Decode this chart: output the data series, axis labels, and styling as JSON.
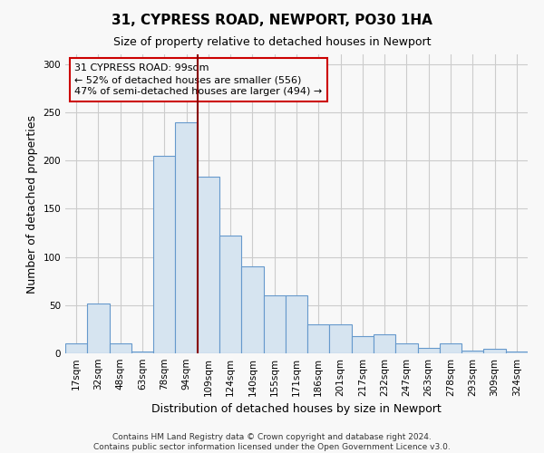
{
  "title": "31, CYPRESS ROAD, NEWPORT, PO30 1HA",
  "subtitle": "Size of property relative to detached houses in Newport",
  "xlabel": "Distribution of detached houses by size in Newport",
  "ylabel": "Number of detached properties",
  "categories": [
    "17sqm",
    "32sqm",
    "48sqm",
    "63sqm",
    "78sqm",
    "94sqm",
    "109sqm",
    "124sqm",
    "140sqm",
    "155sqm",
    "171sqm",
    "186sqm",
    "201sqm",
    "217sqm",
    "232sqm",
    "247sqm",
    "263sqm",
    "278sqm",
    "293sqm",
    "309sqm",
    "324sqm"
  ],
  "values": [
    10,
    52,
    10,
    2,
    205,
    240,
    183,
    122,
    90,
    60,
    60,
    30,
    30,
    18,
    20,
    10,
    6,
    10,
    3,
    5,
    2
  ],
  "bar_color": "#d6e4f0",
  "bar_edgecolor": "#6699cc",
  "grid_color": "#cccccc",
  "annotation_line_color": "#880000",
  "annotation_box_edgecolor": "#cc0000",
  "annotation_text": "31 CYPRESS ROAD: 99sqm\n← 52% of detached houses are smaller (556)\n47% of semi-detached houses are larger (494) →",
  "property_line_x": 5.5,
  "ylim": [
    0,
    310
  ],
  "yticks": [
    0,
    50,
    100,
    150,
    200,
    250,
    300
  ],
  "footnote": "Contains HM Land Registry data © Crown copyright and database right 2024.\nContains public sector information licensed under the Open Government Licence v3.0.",
  "background_color": "#f8f8f8",
  "title_fontsize": 11,
  "subtitle_fontsize": 9,
  "ylabel_fontsize": 9,
  "xlabel_fontsize": 9,
  "tick_fontsize": 7.5,
  "annotation_fontsize": 8,
  "footnote_fontsize": 6.5
}
